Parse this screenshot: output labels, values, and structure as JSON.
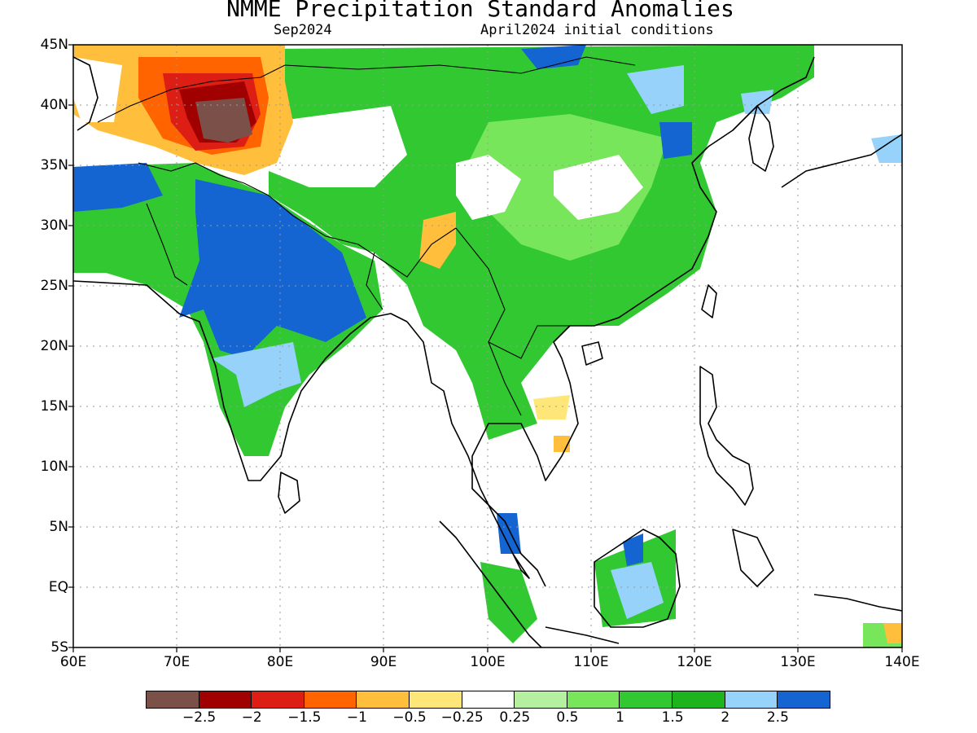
{
  "header": {
    "title": "NMME Precipitation Standard Anomalies",
    "target_month": "Sep2024",
    "initial_conditions": "April2024 initial conditions"
  },
  "axes": {
    "lat_labels": [
      "45N",
      "40N",
      "35N",
      "30N",
      "25N",
      "20N",
      "15N",
      "10N",
      "5N",
      "EQ",
      "5S"
    ],
    "lon_labels": [
      "60E",
      "70E",
      "80E",
      "90E",
      "100E",
      "110E",
      "120E",
      "130E",
      "140E"
    ],
    "lat_range": [
      -5,
      45
    ],
    "lon_range": [
      60,
      140
    ],
    "grid": true
  },
  "colorbar": {
    "colors": [
      "#7a5048",
      "#a00000",
      "#dc1e14",
      "#ff6400",
      "#ffbe3c",
      "#ffe678",
      "#ffffff",
      "#b4f0a0",
      "#78e65a",
      "#32c832",
      "#1eb41e",
      "#96d2fa",
      "#1464d2"
    ],
    "labels": [
      "-2.5",
      "-2",
      "-1.5",
      "-1",
      "-0.5",
      "-0.25",
      "0.25",
      "0.5",
      "1",
      "1.5",
      "2",
      "2.5"
    ]
  },
  "chart_data": {
    "type": "heatmap",
    "title": "NMME Precipitation Standard Anomalies",
    "subtitle": "Sep2024 April2024 initial conditions",
    "x_range": [
      60,
      140
    ],
    "y_range": [
      -5,
      45
    ],
    "color_levels": [
      -2.5,
      -2,
      -1.5,
      -1,
      -0.5,
      -0.25,
      0.25,
      0.5,
      1,
      1.5,
      2,
      2.5
    ],
    "regions": [
      {
        "area": "Central Asia near 37N 74E",
        "anomaly": -2.5
      },
      {
        "area": "Central Asia near 40N 74E",
        "anomaly": -2
      },
      {
        "area": "Afghanistan/Tajikistan region",
        "anomaly": -1
      },
      {
        "area": "Pakistan and NW India near 33N 65E",
        "anomaly": 2.5
      },
      {
        "area": "Central and NW India",
        "anomaly": 2.5
      },
      {
        "area": "Eastern Tibet / China interior",
        "anomaly": 1.5
      },
      {
        "area": "Central China near 32N 110E",
        "anomaly": 0.25
      },
      {
        "area": "Southern China",
        "anomaly": 1.5
      },
      {
        "area": "Indochina",
        "anomaly": 1
      },
      {
        "area": "Cambodia near 13N 106E",
        "anomaly": -0.5
      },
      {
        "area": "Borneo",
        "anomaly": 2
      },
      {
        "area": "Malay Peninsula near 4N 103E",
        "anomaly": 2.5
      },
      {
        "area": "Mongolia near 44N 105E",
        "anomaly": 2.5
      },
      {
        "area": "NE China near 38N 115E",
        "anomaly": 2.5
      }
    ]
  }
}
